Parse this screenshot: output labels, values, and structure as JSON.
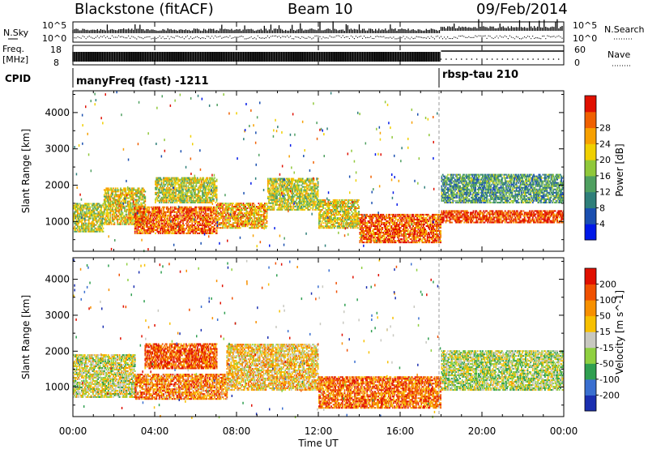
{
  "header": {
    "station": "Blackstone (fitACF)",
    "beam": "Beam 10",
    "date": "09/Feb/2014"
  },
  "top_panels": {
    "nsky_label": "N.Sky",
    "nsky_ticks": [
      "10^5",
      "10^0"
    ],
    "nsearch_label": "N.Search",
    "nsearch_ticks": [
      "10^5",
      "10^0"
    ],
    "freq_label_line1": "Freq.",
    "freq_label_line2": "[MHz]",
    "freq_ticks": [
      "18",
      "8"
    ],
    "nave_label": "Nave",
    "nave_ticks": [
      "60",
      "0"
    ],
    "cpid_label": "CPID",
    "cpid_programs": [
      {
        "name": "manyFreq (fast) -1211",
        "start_hour": 0
      },
      {
        "name": "rbsp-tau 210",
        "start_hour": 18
      }
    ]
  },
  "x_axis": {
    "label": "Time UT",
    "tick_labels": [
      "00:00",
      "04:00",
      "08:00",
      "12:00",
      "16:00",
      "20:00",
      "00:00"
    ],
    "range_hours": [
      0,
      24
    ]
  },
  "chart_data": [
    {
      "type": "heatmap",
      "name": "power",
      "ylabel": "Slant Range [km]",
      "yticks": [
        1000,
        2000,
        3000,
        4000
      ],
      "ylim": [
        180,
        4600
      ],
      "xlim": [
        0,
        24
      ],
      "colorbar": {
        "label": "Power [dB]",
        "ticks": [
          "4",
          "8",
          "12",
          "16",
          "20",
          "24",
          "28"
        ],
        "range": [
          0,
          32
        ],
        "colors": [
          "#0018e8",
          "#1a4fb0",
          "#2f7f7a",
          "#4fa060",
          "#90c83a",
          "#f0d000",
          "#f7a000",
          "#f06000",
          "#e01000"
        ]
      },
      "bands": [
        {
          "t0": 0.0,
          "t1": 1.5,
          "r0": 700,
          "r1": 1500,
          "level": 0.55
        },
        {
          "t0": 1.5,
          "t1": 3.5,
          "r0": 900,
          "r1": 1900,
          "level": 0.6
        },
        {
          "t0": 3.0,
          "t1": 7.0,
          "r0": 650,
          "r1": 1400,
          "level": 0.85
        },
        {
          "t0": 4.0,
          "t1": 7.0,
          "r0": 1500,
          "r1": 2200,
          "level": 0.55
        },
        {
          "t0": 7.0,
          "t1": 9.5,
          "r0": 800,
          "r1": 1500,
          "level": 0.7
        },
        {
          "t0": 9.5,
          "t1": 12.0,
          "r0": 1300,
          "r1": 2200,
          "level": 0.55
        },
        {
          "t0": 12.0,
          "t1": 14.0,
          "r0": 800,
          "r1": 1600,
          "level": 0.6
        },
        {
          "t0": 14.0,
          "t1": 18.0,
          "r0": 400,
          "r1": 1200,
          "level": 0.85
        },
        {
          "t0": 18.0,
          "t1": 24.0,
          "r0": 950,
          "r1": 1300,
          "level": 0.9
        },
        {
          "t0": 18.0,
          "t1": 24.0,
          "r0": 1500,
          "r1": 2300,
          "level": 0.35
        }
      ]
    },
    {
      "type": "heatmap",
      "name": "velocity",
      "ylabel": "Slant Range [km]",
      "yticks": [
        1000,
        2000,
        3000,
        4000
      ],
      "ylim": [
        180,
        4600
      ],
      "xlim": [
        0,
        24
      ],
      "colorbar": {
        "label": "Velocity [m s^-1]",
        "ticks": [
          "200",
          "100",
          "50",
          "15",
          "-15",
          "-50",
          "-100",
          "-200"
        ],
        "range": [
          250,
          -250
        ],
        "colors": [
          "#1a2fb0",
          "#3a6fd0",
          "#2f9f50",
          "#8fd040",
          "#c8c8c0",
          "#f7c000",
          "#f79000",
          "#f05000",
          "#e01000"
        ]
      },
      "bands": [
        {
          "t0": 0.0,
          "t1": 3.0,
          "r0": 700,
          "r1": 1900,
          "level": 0.5
        },
        {
          "t0": 3.0,
          "t1": 7.5,
          "r0": 650,
          "r1": 1350,
          "level": 0.75
        },
        {
          "t0": 3.5,
          "t1": 7.0,
          "r0": 1500,
          "r1": 2200,
          "level": 0.85
        },
        {
          "t0": 7.5,
          "t1": 12.0,
          "r0": 900,
          "r1": 2200,
          "level": 0.6
        },
        {
          "t0": 12.0,
          "t1": 18.0,
          "r0": 400,
          "r1": 1300,
          "level": 0.8
        },
        {
          "t0": 18.0,
          "t1": 24.0,
          "r0": 900,
          "r1": 2000,
          "level": 0.45
        }
      ]
    }
  ]
}
